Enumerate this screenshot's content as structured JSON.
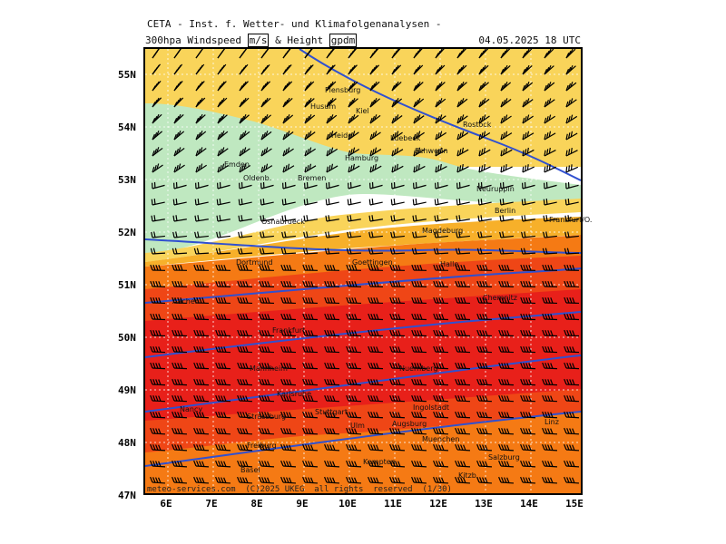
{
  "header": {
    "title_line1": "CETA - Inst. f. Wetter- und Klimafolgenanalysen -",
    "title_line2_prefix": "300hpa Windspeed ",
    "unit_wind": "m/s",
    "title_line2_mid": " & Height ",
    "unit_height": "gpdm",
    "datetime": "04.05.2025 18 UTC"
  },
  "axes": {
    "lat_labels": [
      "55N",
      "54N",
      "53N",
      "52N",
      "51N",
      "50N",
      "49N",
      "48N",
      "47N"
    ],
    "lon_labels": [
      "6E",
      "7E",
      "8E",
      "9E",
      "10E",
      "11E",
      "12E",
      "13E",
      "14E",
      "15E"
    ]
  },
  "cities": [
    "Flensburg",
    "Husum",
    "Kiel",
    "Heide",
    "Rostock",
    "Luebeck",
    "Schwerin",
    "Emden",
    "Oldenb.",
    "Bremen",
    "Hamburg",
    "Neuruppin",
    "Berlin",
    "Frankfurt/O.",
    "Osnabrueck",
    "Magdeburg",
    "Dortmund",
    "Goettingen",
    "Halle",
    "Aachen",
    "Chemnitz",
    "Frankfurt",
    "Mannheim",
    "Nuernberg",
    "Karlsruhe",
    "Ingolstadt",
    "Nancy",
    "Strassburg",
    "Stuttgart",
    "Ulm",
    "Augsburg",
    "Linz",
    "Muenchen",
    "Freiburg",
    "Basel",
    "Kempten",
    "Salzburg",
    "Kitzb."
  ],
  "copyright": "meteo-services.com  (C)2025 UKEG  all rights  reserved  (1/30)",
  "colors": {
    "speed_lt15": "#bfe8c0",
    "speed_15_20": "#fce8a0",
    "speed_20_25": "#f9d45a",
    "speed_25_30": "#f7b02a",
    "speed_30_40": "#f57a14",
    "speed_40_50": "#ef4616",
    "speed_gt50": "#e8201a",
    "height_contour": "#3050d0",
    "barb": "#000000"
  }
}
